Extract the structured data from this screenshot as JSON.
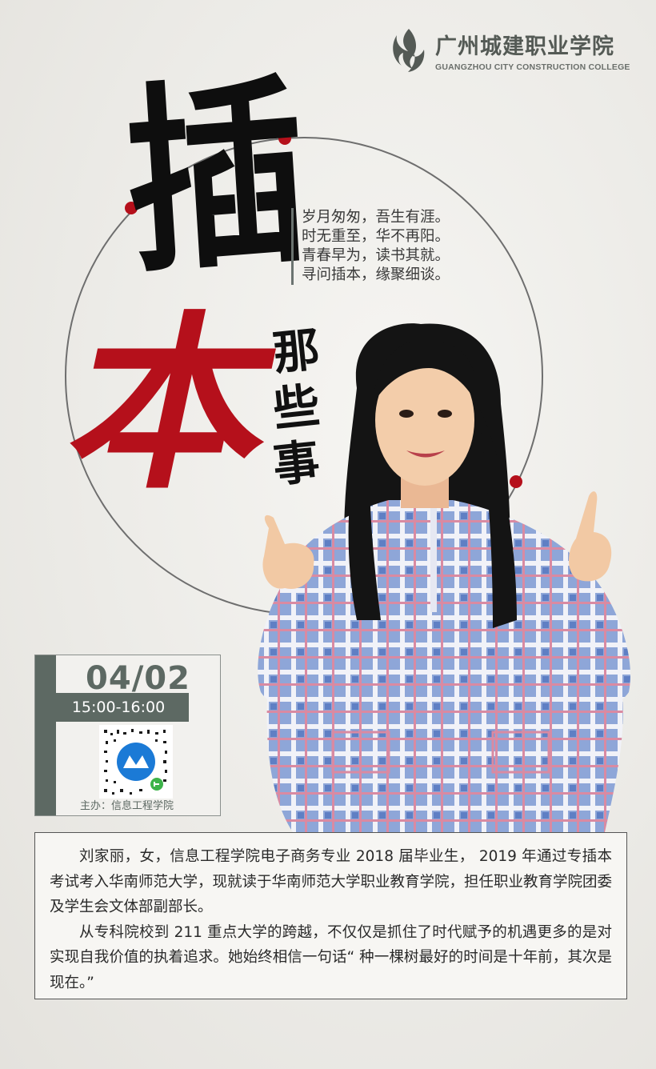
{
  "logo": {
    "name_cn": "广州城建职业学院",
    "name_en": "GUANGZHOU CITY CONSTRUCTION COLLEGE",
    "icon": "college-flame-logo"
  },
  "title": {
    "char_1": "插",
    "char_2": "本",
    "subtitle_chars": [
      "那",
      "些",
      "事"
    ]
  },
  "poem": {
    "lines": [
      "岁月匆匆，吾生有涯。",
      "时无重至，华不再阳。",
      "青春早为，读书其就。",
      "寻问插本，缘聚细谈。"
    ]
  },
  "event": {
    "date": "04/02",
    "time": "15:00-16:00",
    "qr_icon": "mini-program-qr-code",
    "host": "主办：信息工程学院"
  },
  "description": {
    "paragraphs": [
      "刘家丽，女，信息工程学院电子商务专业 2018 届毕业生， 2019 年通过专插本考试考入华南师范大学，现就读于华南师范大学职业教育学院，担任职业教育学院团委及学生会文体部副部长。",
      "从专科院校到 211 重点大学的跨越，不仅仅是抓住了时代赋予的机遇更多的是对实现自我价值的执着追求。她始终相信一句话“ 种一棵树最好的时间是十年前，其次是现在。”"
    ]
  },
  "colors": {
    "accent_red": "#b5101b",
    "slate_green": "#5d6963",
    "background": "#eceae6"
  }
}
